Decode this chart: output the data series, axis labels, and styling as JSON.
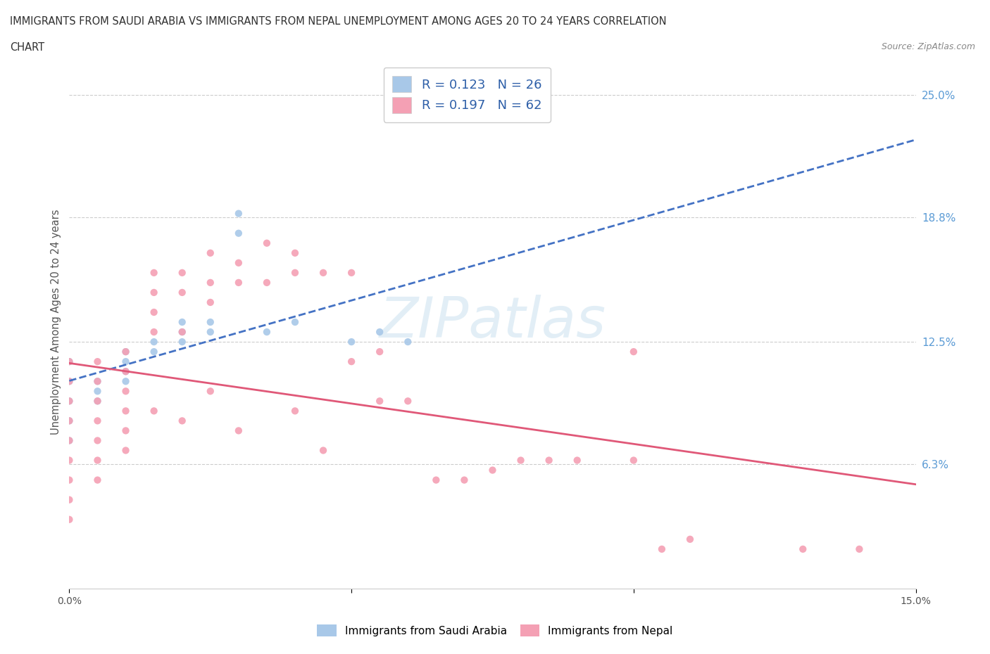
{
  "title_line1": "IMMIGRANTS FROM SAUDI ARABIA VS IMMIGRANTS FROM NEPAL UNEMPLOYMENT AMONG AGES 20 TO 24 YEARS CORRELATION",
  "title_line2": "CHART",
  "source_text": "Source: ZipAtlas.com",
  "ylabel": "Unemployment Among Ages 20 to 24 years",
  "xlim": [
    0.0,
    0.15
  ],
  "ylim": [
    0.0,
    0.27
  ],
  "ytick_vals": [
    0.063,
    0.125,
    0.188,
    0.25
  ],
  "ytick_labels": [
    "6.3%",
    "12.5%",
    "18.8%",
    "25.0%"
  ],
  "r_saudi": 0.123,
  "n_saudi": 26,
  "r_nepal": 0.197,
  "n_nepal": 62,
  "color_saudi": "#a8c8e8",
  "color_nepal": "#f4a0b4",
  "trendline_saudi_color": "#4472c4",
  "trendline_saudi_dash": "dashed",
  "trendline_nepal_color": "#e05878",
  "legend_label_saudi": "Immigrants from Saudi Arabia",
  "legend_label_nepal": "Immigrants from Nepal",
  "saudi_x": [
    0.0,
    0.0,
    0.0,
    0.0,
    0.0,
    0.005,
    0.005,
    0.005,
    0.01,
    0.01,
    0.01,
    0.01,
    0.015,
    0.015,
    0.02,
    0.02,
    0.02,
    0.025,
    0.025,
    0.03,
    0.03,
    0.035,
    0.04,
    0.05,
    0.055,
    0.06
  ],
  "saudi_y": [
    0.115,
    0.105,
    0.095,
    0.085,
    0.075,
    0.105,
    0.1,
    0.095,
    0.12,
    0.115,
    0.11,
    0.105,
    0.125,
    0.12,
    0.135,
    0.13,
    0.125,
    0.135,
    0.13,
    0.19,
    0.18,
    0.13,
    0.135,
    0.125,
    0.13,
    0.125
  ],
  "nepal_x": [
    0.0,
    0.0,
    0.0,
    0.0,
    0.0,
    0.0,
    0.0,
    0.0,
    0.0,
    0.005,
    0.005,
    0.005,
    0.005,
    0.005,
    0.005,
    0.005,
    0.01,
    0.01,
    0.01,
    0.01,
    0.01,
    0.01,
    0.015,
    0.015,
    0.015,
    0.015,
    0.015,
    0.02,
    0.02,
    0.02,
    0.02,
    0.025,
    0.025,
    0.025,
    0.025,
    0.03,
    0.03,
    0.03,
    0.035,
    0.035,
    0.04,
    0.04,
    0.04,
    0.045,
    0.045,
    0.05,
    0.05,
    0.055,
    0.055,
    0.06,
    0.065,
    0.07,
    0.075,
    0.08,
    0.085,
    0.09,
    0.1,
    0.1,
    0.105,
    0.11,
    0.13,
    0.14
  ],
  "nepal_y": [
    0.115,
    0.105,
    0.095,
    0.085,
    0.075,
    0.065,
    0.055,
    0.045,
    0.035,
    0.115,
    0.105,
    0.095,
    0.085,
    0.075,
    0.065,
    0.055,
    0.12,
    0.11,
    0.1,
    0.09,
    0.08,
    0.07,
    0.16,
    0.15,
    0.14,
    0.13,
    0.09,
    0.16,
    0.15,
    0.13,
    0.085,
    0.17,
    0.155,
    0.145,
    0.1,
    0.165,
    0.155,
    0.08,
    0.175,
    0.155,
    0.17,
    0.16,
    0.09,
    0.16,
    0.07,
    0.16,
    0.115,
    0.12,
    0.095,
    0.095,
    0.055,
    0.055,
    0.06,
    0.065,
    0.065,
    0.065,
    0.12,
    0.065,
    0.02,
    0.025,
    0.02,
    0.02
  ],
  "watermark_text": "ZIPatlas",
  "watermark_color": "#d0e4f0",
  "watermark_alpha": 0.6,
  "background_color": "#ffffff",
  "grid_color": "#cccccc",
  "title_color": "#303030",
  "source_color": "#888888",
  "ylabel_color": "#555555",
  "ytick_color": "#5b9bd5",
  "xtick_color": "#555555"
}
